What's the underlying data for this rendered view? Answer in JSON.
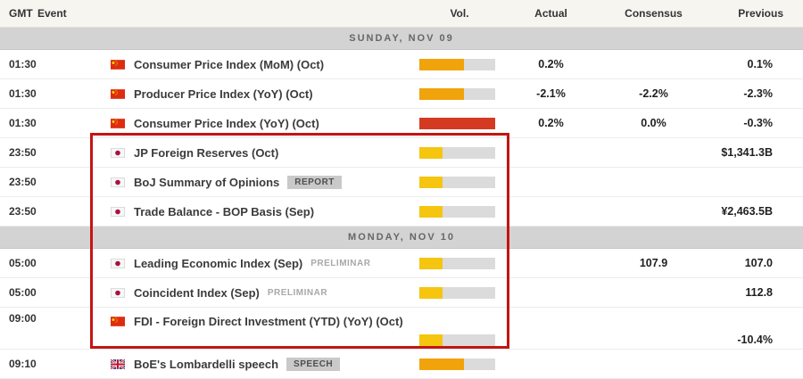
{
  "header": {
    "gmt_label": "GMT",
    "event_label": "Event",
    "vol_label": "Vol.",
    "actual_label": "Actual",
    "consensus_label": "Consensus",
    "previous_label": "Previous"
  },
  "colors": {
    "vol_orange": "#F0A30A",
    "vol_red": "#D43A21",
    "vol_yellow": "#F5C50F",
    "vol_track": "#DBDBDB",
    "annotation_red": "#C41512"
  },
  "sections": [
    {
      "date_label": "SUNDAY, NOV 09",
      "rows": [
        {
          "time": "01:30",
          "country": "CN",
          "title": "Consumer Price Index (MoM) (Oct)",
          "vol": {
            "level": "orange",
            "pct": 59
          },
          "actual": "0.2%",
          "consensus": "",
          "previous": "0.1%"
        },
        {
          "time": "01:30",
          "country": "CN",
          "title": "Producer Price Index (YoY) (Oct)",
          "vol": {
            "level": "orange",
            "pct": 59
          },
          "actual": "-2.1%",
          "consensus": "-2.2%",
          "previous": "-2.3%"
        },
        {
          "time": "01:30",
          "country": "CN",
          "title": "Consumer Price Index (YoY) (Oct)",
          "vol": {
            "level": "red",
            "pct": 100
          },
          "actual": "0.2%",
          "consensus": "0.0%",
          "previous": "-0.3%"
        },
        {
          "time": "23:50",
          "country": "JP",
          "title": "JP Foreign Reserves (Oct)",
          "vol": {
            "level": "yellow",
            "pct": 31
          },
          "actual": "",
          "consensus": "",
          "previous": "$1,341.3B"
        },
        {
          "time": "23:50",
          "country": "JP",
          "title": "BoJ Summary of Opinions",
          "badge": "REPORT",
          "vol": {
            "level": "yellow",
            "pct": 31
          },
          "actual": "",
          "consensus": "",
          "previous": ""
        },
        {
          "time": "23:50",
          "country": "JP",
          "title": "Trade Balance - BOP Basis (Sep)",
          "vol": {
            "level": "yellow",
            "pct": 31
          },
          "actual": "",
          "consensus": "",
          "previous": "¥2,463.5B"
        }
      ]
    },
    {
      "date_label": "MONDAY, NOV 10",
      "rows": [
        {
          "time": "05:00",
          "country": "JP",
          "title": "Leading Economic Index (Sep)",
          "tag": "PRELIMINAR",
          "vol": {
            "level": "yellow",
            "pct": 31
          },
          "actual": "",
          "consensus": "107.9",
          "previous": "107.0"
        },
        {
          "time": "05:00",
          "country": "JP",
          "title": "Coincident Index (Sep)",
          "tag": "PRELIMINAR",
          "vol": {
            "level": "yellow",
            "pct": 31
          },
          "actual": "",
          "consensus": "",
          "previous": "112.8"
        },
        {
          "time": "09:00",
          "country": "CN",
          "title": "FDI - Foreign Direct Investment (YTD) (YoY) (Oct)",
          "wide": true,
          "vol": {
            "level": "yellow",
            "pct": 31
          },
          "actual": "",
          "consensus": "",
          "previous": "-10.4%"
        },
        {
          "time": "09:10",
          "country": "GB",
          "title": "BoE's Lombardelli speech",
          "badge": "SPEECH",
          "vol": {
            "level": "orange",
            "pct": 59
          },
          "actual": "",
          "consensus": "",
          "previous": ""
        }
      ]
    }
  ]
}
